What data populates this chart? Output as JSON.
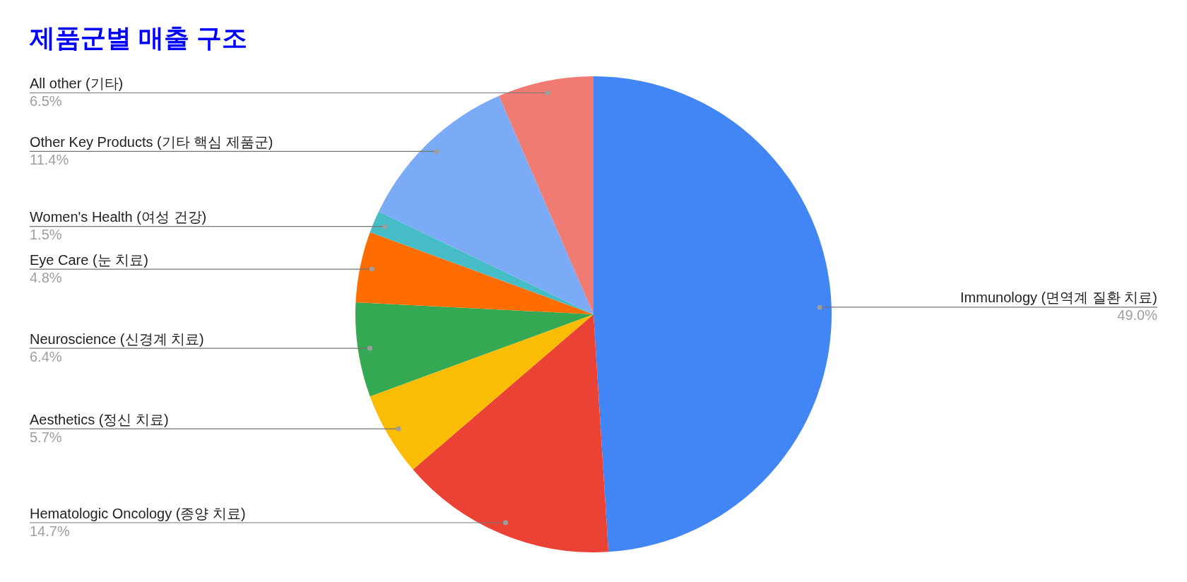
{
  "chart_data": {
    "type": "pie",
    "title": "제품군별 매출 구조",
    "categories": [
      "Immunology (면역계 질환 치료)",
      "Hematologic Oncology (종양 치료)",
      "Aesthetics (정신 치료)",
      "Neuroscience (신경계 치료)",
      "Eye Care (눈 치료)",
      "Women's Health (여성 건강)",
      "Other Key Products (기타 핵심 제품군)",
      "All other (기타)"
    ],
    "values": [
      49.0,
      14.7,
      5.7,
      6.4,
      4.8,
      1.5,
      11.4,
      6.5
    ],
    "colors": [
      "#4285f4",
      "#ea4335",
      "#fbbc04",
      "#34a853",
      "#ff6d01",
      "#46bdc6",
      "#7baaf7",
      "#f07b72"
    ],
    "value_labels": [
      "49.0%",
      "14.7%",
      "5.7%",
      "6.4%",
      "4.8%",
      "1.5%",
      "11.4%",
      "6.5%"
    ],
    "legend": false
  }
}
